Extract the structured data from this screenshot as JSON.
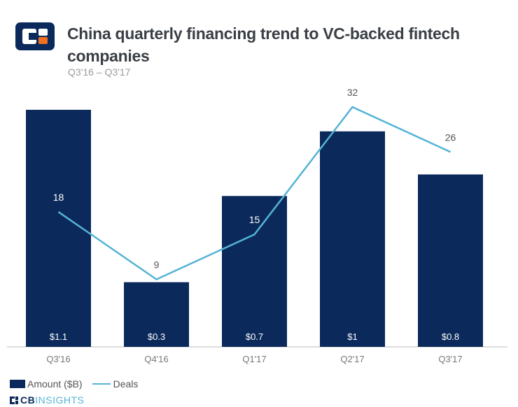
{
  "header": {
    "title": "China quarterly financing trend to VC-backed fintech companies",
    "subtitle": "Q3'16 – Q3'17"
  },
  "legend": {
    "amount_label": "Amount ($B)",
    "deals_label": "Deals"
  },
  "brand": {
    "cb": "CB",
    "insights": "INSIGHTS"
  },
  "colors": {
    "bar": "#0b2a5b",
    "line": "#55b3d6",
    "logo_orange": "#f26f21"
  },
  "chart_data": {
    "type": "bar",
    "categories": [
      "Q3'16",
      "Q4'16",
      "Q1'17",
      "Q2'17",
      "Q3'17"
    ],
    "series": [
      {
        "name": "Amount ($B)",
        "type": "bar",
        "values": [
          1.1,
          0.3,
          0.7,
          1.0,
          0.8
        ],
        "labels": [
          "$1.1",
          "$0.3",
          "$0.7",
          "$1",
          "$0.8"
        ]
      },
      {
        "name": "Deals",
        "type": "line",
        "values": [
          18,
          9,
          15,
          32,
          26
        ],
        "labels": [
          "18",
          "9",
          "15",
          "32",
          "26"
        ]
      }
    ],
    "ylim_bars": [
      0,
      1.1
    ],
    "ylim_line": [
      0,
      35
    ],
    "grid": false,
    "legend_position": "bottom-left"
  }
}
